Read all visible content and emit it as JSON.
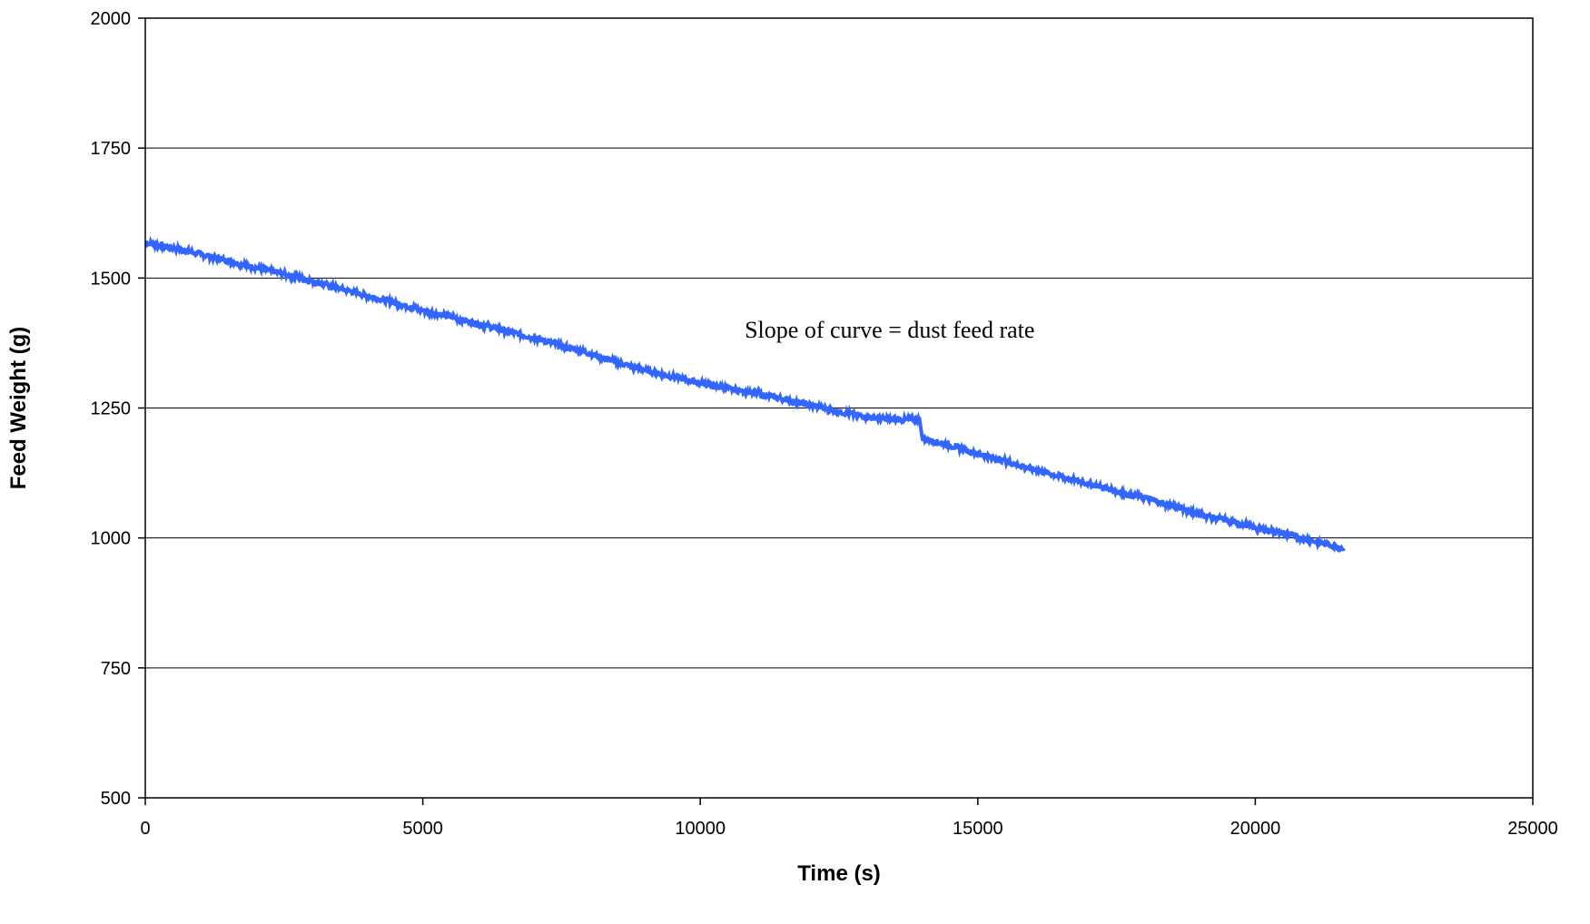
{
  "chart_data": {
    "type": "line",
    "title": "",
    "xlabel": "Time (s)",
    "ylabel": "Feed Weight (g)",
    "xlim": [
      0,
      25000
    ],
    "ylim": [
      500,
      2000
    ],
    "xticks": [
      0,
      5000,
      10000,
      15000,
      20000,
      25000
    ],
    "yticks": [
      500,
      750,
      1000,
      1250,
      1500,
      1750,
      2000
    ],
    "xtick_labels": [
      "0",
      "5000",
      "10000",
      "15000",
      "20000",
      "25000"
    ],
    "ytick_labels": [
      "500",
      "750",
      "1000",
      "1250",
      "1500",
      "1750",
      "2000"
    ],
    "grid": "horizontal",
    "legend": "none",
    "annotation": {
      "text": "Slope of curve = dust feed rate",
      "x": 10800,
      "y": 1385
    },
    "series": [
      {
        "color": "#3366ff",
        "points": [
          [
            0,
            1568
          ],
          [
            500,
            1558
          ],
          [
            1000,
            1546
          ],
          [
            1500,
            1533
          ],
          [
            2000,
            1520
          ],
          [
            2500,
            1508
          ],
          [
            3000,
            1494
          ],
          [
            3500,
            1480
          ],
          [
            4000,
            1466
          ],
          [
            4500,
            1452
          ],
          [
            5000,
            1438
          ],
          [
            5500,
            1425
          ],
          [
            6000,
            1412
          ],
          [
            6500,
            1398
          ],
          [
            7000,
            1385
          ],
          [
            7500,
            1370
          ],
          [
            8000,
            1355
          ],
          [
            8500,
            1338
          ],
          [
            9000,
            1323
          ],
          [
            9500,
            1310
          ],
          [
            10000,
            1298
          ],
          [
            10500,
            1287
          ],
          [
            11000,
            1278
          ],
          [
            11500,
            1267
          ],
          [
            12000,
            1255
          ],
          [
            12500,
            1243
          ],
          [
            13000,
            1233
          ],
          [
            13500,
            1227
          ],
          [
            13950,
            1228
          ],
          [
            14000,
            1192
          ],
          [
            14500,
            1178
          ],
          [
            15000,
            1162
          ],
          [
            15500,
            1148
          ],
          [
            16000,
            1132
          ],
          [
            16500,
            1118
          ],
          [
            17000,
            1104
          ],
          [
            17500,
            1090
          ],
          [
            18000,
            1077
          ],
          [
            18500,
            1062
          ],
          [
            19000,
            1046
          ],
          [
            19500,
            1033
          ],
          [
            20000,
            1020
          ],
          [
            20500,
            1009
          ],
          [
            21000,
            995
          ],
          [
            21600,
            980
          ]
        ]
      }
    ]
  }
}
